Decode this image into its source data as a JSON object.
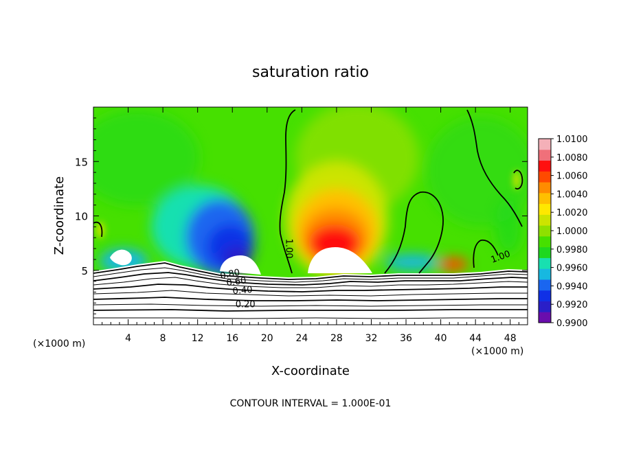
{
  "chart_data": {
    "type": "heatmap",
    "title": "saturation ratio",
    "xlabel": "X-coordinate",
    "ylabel": "Z-coordinate",
    "x_unit_left": "(×1000 m)",
    "x_unit_right": "(×1000 m)",
    "footer": "CONTOUR INTERVAL = 1.000E-01",
    "xlim": [
      0,
      50
    ],
    "ylim": [
      0,
      20
    ],
    "x_ticks": [
      4,
      8,
      12,
      16,
      20,
      24,
      28,
      32,
      36,
      40,
      44,
      48
    ],
    "x_tick_labels": [
      "4",
      "8",
      "12",
      "16",
      "20",
      "24",
      "28",
      "32",
      "36",
      "40",
      "44",
      "48"
    ],
    "y_ticks": [
      5,
      10,
      15
    ],
    "y_tick_labels": [
      "5",
      "10",
      "15"
    ],
    "contour_labels": [
      {
        "text": "1.00",
        "x": 22.2,
        "z": 7.0,
        "rotate": 90
      },
      {
        "text": "1.00",
        "x": 47.0,
        "z": 6.0,
        "rotate": -20
      },
      {
        "text": "0.80",
        "x": 15.8,
        "z": 4.4,
        "rotate": -12
      },
      {
        "text": "0.60",
        "x": 16.5,
        "z": 3.7,
        "rotate": -8
      },
      {
        "text": "0.40",
        "x": 17.2,
        "z": 2.9,
        "rotate": -5
      },
      {
        "text": "0.20",
        "x": 17.5,
        "z": 1.6,
        "rotate": 0
      }
    ],
    "colorbar": {
      "min": 0.99,
      "max": 1.01,
      "labels": [
        "1.0100",
        "1.0080",
        "1.0060",
        "1.0040",
        "1.0020",
        "1.0000",
        "0.9980",
        "0.9960",
        "0.9940",
        "0.9920",
        "0.9900"
      ],
      "colors": [
        "#6a0dad",
        "#2a1fc8",
        "#1030e6",
        "#1a66f0",
        "#17b8e0",
        "#18e0b0",
        "#1ed81e",
        "#46e000",
        "#8fe000",
        "#cce400",
        "#ffe800",
        "#ffc000",
        "#ff8c00",
        "#ff4a00",
        "#ff1010",
        "#f0707a",
        "#f4b0b8"
      ]
    },
    "features": {
      "dry_core_1_center_x": 16.5,
      "moist_core_center_x": 27,
      "contour_1_00_left_x": 22.5,
      "contour_1_00_right_x": 44
    }
  }
}
